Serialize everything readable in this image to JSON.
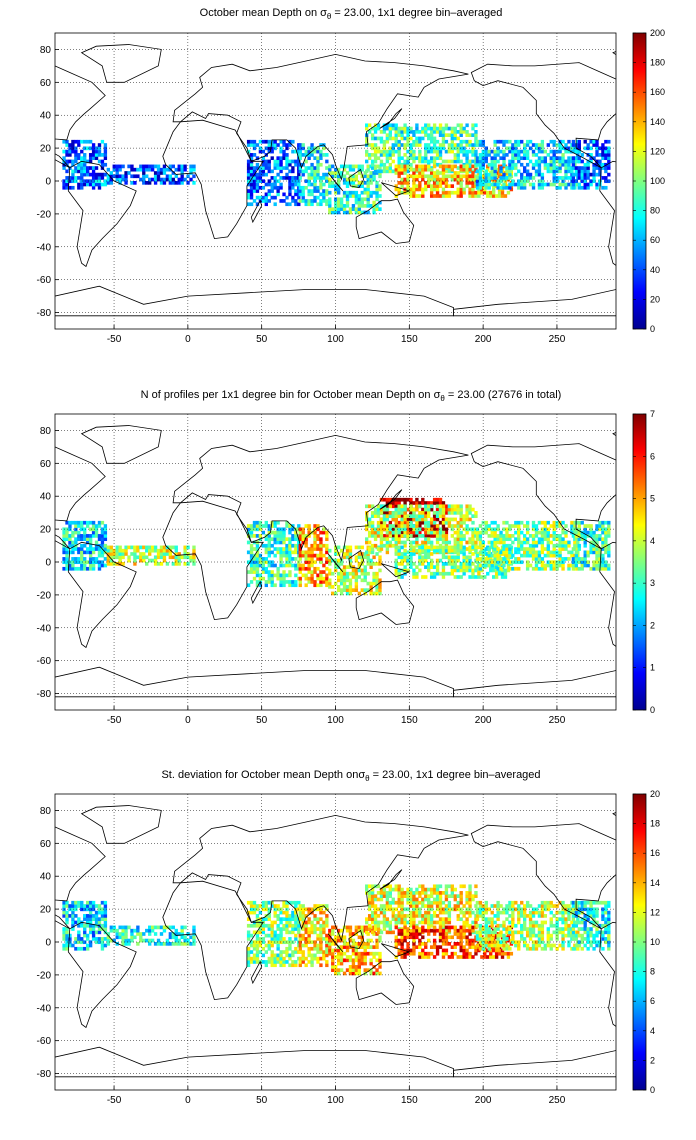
{
  "colors": {
    "land_outline": "#000000",
    "grid": "#000000",
    "background": "#ffffff",
    "colormap": "jet"
  },
  "chart_data": [
    {
      "type": "heatmap",
      "title": {
        "prefix": "October mean Depth on ",
        "symbol": "σ",
        "subscript": "θ",
        "suffix": " = 23.00, 1x1 degree bin–averaged"
      },
      "x_ticks": [
        "-50",
        "0",
        "50",
        "100",
        "150",
        "200",
        "250"
      ],
      "y_ticks": [
        "80",
        "60",
        "40",
        "20",
        "0",
        "-20",
        "-40",
        "-60",
        "-80"
      ],
      "xlim": [
        -90,
        290
      ],
      "ylim": [
        -90,
        90
      ],
      "grid": true,
      "colorbar": {
        "min": 0,
        "max": 200,
        "ticks": [
          "0",
          "20",
          "40",
          "60",
          "80",
          "100",
          "120",
          "140",
          "160",
          "180",
          "200"
        ]
      },
      "data_regions": [
        {
          "lon": [
            -85,
            -55
          ],
          "lat": [
            -5,
            25
          ],
          "value": 45
        },
        {
          "lon": [
            -55,
            5
          ],
          "lat": [
            -2,
            10
          ],
          "value": 40
        },
        {
          "lon": [
            40,
            75
          ],
          "lat": [
            -15,
            25
          ],
          "value": 45
        },
        {
          "lon": [
            75,
            95
          ],
          "lat": [
            -15,
            22
          ],
          "value": 75
        },
        {
          "lon": [
            95,
            130
          ],
          "lat": [
            -20,
            10
          ],
          "value": 85
        },
        {
          "lon": [
            120,
            195
          ],
          "lat": [
            5,
            35
          ],
          "value": 90
        },
        {
          "lon": [
            140,
            220
          ],
          "lat": [
            -10,
            10
          ],
          "value": 135
        },
        {
          "lon": [
            195,
            265
          ],
          "lat": [
            -5,
            25
          ],
          "value": 70
        },
        {
          "lon": [
            260,
            285
          ],
          "lat": [
            -5,
            25
          ],
          "value": 45
        }
      ]
    },
    {
      "type": "heatmap",
      "title": {
        "prefix": "N of profiles per 1x1 degree bin for October mean Depth on ",
        "symbol": "σ",
        "subscript": "θ",
        "suffix": " = 23.00 (27676 in total)"
      },
      "x_ticks": [
        "-50",
        "0",
        "50",
        "100",
        "150",
        "200",
        "250"
      ],
      "y_ticks": [
        "80",
        "60",
        "40",
        "20",
        "0",
        "-20",
        "-40",
        "-60",
        "-80"
      ],
      "xlim": [
        -90,
        290
      ],
      "ylim": [
        -90,
        90
      ],
      "grid": true,
      "colorbar": {
        "min": 0,
        "max": 7,
        "ticks": [
          "0",
          "1",
          "2",
          "3",
          "4",
          "5",
          "6",
          "7"
        ]
      },
      "data_regions": [
        {
          "lon": [
            -85,
            -55
          ],
          "lat": [
            -5,
            25
          ],
          "value": 2.5
        },
        {
          "lon": [
            -55,
            5
          ],
          "lat": [
            -2,
            10
          ],
          "value": 4
        },
        {
          "lon": [
            40,
            75
          ],
          "lat": [
            -15,
            25
          ],
          "value": 3
        },
        {
          "lon": [
            75,
            95
          ],
          "lat": [
            -15,
            22
          ],
          "value": 5
        },
        {
          "lon": [
            95,
            130
          ],
          "lat": [
            -20,
            10
          ],
          "value": 4
        },
        {
          "lon": [
            130,
            175
          ],
          "lat": [
            15,
            38
          ],
          "value": 6.8
        },
        {
          "lon": [
            120,
            195
          ],
          "lat": [
            5,
            35
          ],
          "value": 4
        },
        {
          "lon": [
            140,
            220
          ],
          "lat": [
            -10,
            10
          ],
          "value": 3.5
        },
        {
          "lon": [
            195,
            265
          ],
          "lat": [
            -5,
            25
          ],
          "value": 3.5
        },
        {
          "lon": [
            260,
            285
          ],
          "lat": [
            -5,
            25
          ],
          "value": 3
        }
      ]
    },
    {
      "type": "heatmap",
      "title": {
        "prefix": "St. deviation for October mean Depth on",
        "symbol": "σ",
        "subscript": "θ",
        "suffix": " = 23.00, 1x1 degree bin–averaged"
      },
      "x_ticks": [
        "-50",
        "0",
        "50",
        "100",
        "150",
        "200",
        "250"
      ],
      "y_ticks": [
        "80",
        "60",
        "40",
        "20",
        "0",
        "-20",
        "-40",
        "-60",
        "-80"
      ],
      "xlim": [
        -90,
        290
      ],
      "ylim": [
        -90,
        90
      ],
      "grid": true,
      "colorbar": {
        "min": 0,
        "max": 20,
        "ticks": [
          "0",
          "2",
          "4",
          "6",
          "8",
          "10",
          "12",
          "14",
          "16",
          "18",
          "20"
        ]
      },
      "data_regions": [
        {
          "lon": [
            -85,
            -55
          ],
          "lat": [
            -5,
            25
          ],
          "value": 7
        },
        {
          "lon": [
            -55,
            5
          ],
          "lat": [
            -2,
            10
          ],
          "value": 8
        },
        {
          "lon": [
            40,
            75
          ],
          "lat": [
            -15,
            25
          ],
          "value": 10
        },
        {
          "lon": [
            75,
            95
          ],
          "lat": [
            -15,
            22
          ],
          "value": 13
        },
        {
          "lon": [
            95,
            130
          ],
          "lat": [
            -20,
            10
          ],
          "value": 14
        },
        {
          "lon": [
            120,
            195
          ],
          "lat": [
            5,
            35
          ],
          "value": 12
        },
        {
          "lon": [
            140,
            220
          ],
          "lat": [
            -10,
            10
          ],
          "value": 16
        },
        {
          "lon": [
            195,
            265
          ],
          "lat": [
            -5,
            25
          ],
          "value": 11
        },
        {
          "lon": [
            260,
            285
          ],
          "lat": [
            -5,
            25
          ],
          "value": 8
        }
      ]
    }
  ]
}
